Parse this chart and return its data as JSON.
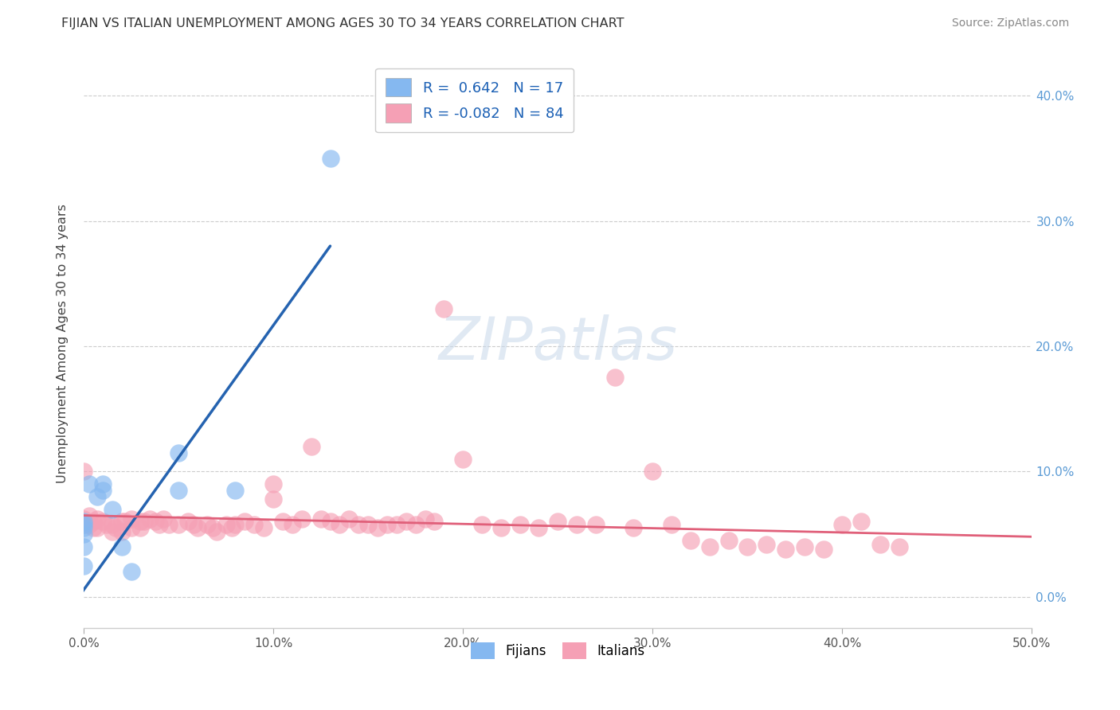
{
  "title": "FIJIAN VS ITALIAN UNEMPLOYMENT AMONG AGES 30 TO 34 YEARS CORRELATION CHART",
  "source": "Source: ZipAtlas.com",
  "ylabel": "Unemployment Among Ages 30 to 34 years",
  "xlim": [
    0.0,
    0.5
  ],
  "ylim": [
    -0.025,
    0.43
  ],
  "xticks": [
    0.0,
    0.1,
    0.2,
    0.3,
    0.4,
    0.5
  ],
  "xticklabels": [
    "0.0%",
    "10.0%",
    "20.0%",
    "30.0%",
    "40.0%",
    "50.0%"
  ],
  "yticks": [
    0.0,
    0.1,
    0.2,
    0.3,
    0.4
  ],
  "yticklabels": [
    "0.0%",
    "10.0%",
    "20.0%",
    "30.0%",
    "40.0%"
  ],
  "fijian_color": "#85b8f0",
  "italian_color": "#f5a0b5",
  "fijian_line_color": "#2563b0",
  "italian_line_color": "#e0607a",
  "legend_R_fijian": "0.642",
  "legend_N_fijian": "17",
  "legend_R_italian": "-0.082",
  "legend_N_italian": "84",
  "fijian_x": [
    0.0,
    0.0,
    0.0,
    0.0,
    0.0,
    0.0,
    0.003,
    0.007,
    0.01,
    0.01,
    0.015,
    0.02,
    0.025,
    0.05,
    0.05,
    0.08,
    0.13
  ],
  "fijian_y": [
    0.05,
    0.055,
    0.058,
    0.06,
    0.04,
    0.025,
    0.09,
    0.08,
    0.085,
    0.09,
    0.07,
    0.04,
    0.02,
    0.085,
    0.115,
    0.085,
    0.35
  ],
  "fijian_trendline_x": [
    -0.005,
    0.13
  ],
  "fijian_trendline_y": [
    -0.005,
    0.28
  ],
  "italian_x": [
    0.0,
    0.0,
    0.0,
    0.003,
    0.003,
    0.005,
    0.005,
    0.007,
    0.007,
    0.01,
    0.012,
    0.015,
    0.015,
    0.017,
    0.02,
    0.02,
    0.022,
    0.025,
    0.025,
    0.03,
    0.03,
    0.032,
    0.035,
    0.038,
    0.04,
    0.042,
    0.045,
    0.05,
    0.055,
    0.058,
    0.06,
    0.065,
    0.068,
    0.07,
    0.075,
    0.078,
    0.08,
    0.085,
    0.09,
    0.095,
    0.1,
    0.1,
    0.105,
    0.11,
    0.115,
    0.12,
    0.125,
    0.13,
    0.135,
    0.14,
    0.145,
    0.15,
    0.155,
    0.16,
    0.165,
    0.17,
    0.175,
    0.18,
    0.185,
    0.19,
    0.2,
    0.21,
    0.22,
    0.23,
    0.24,
    0.25,
    0.26,
    0.27,
    0.28,
    0.29,
    0.3,
    0.31,
    0.32,
    0.33,
    0.34,
    0.35,
    0.36,
    0.37,
    0.38,
    0.39,
    0.4,
    0.41,
    0.42,
    0.43
  ],
  "italian_y": [
    0.1,
    0.062,
    0.058,
    0.065,
    0.058,
    0.06,
    0.055,
    0.062,
    0.055,
    0.06,
    0.058,
    0.058,
    0.052,
    0.055,
    0.06,
    0.052,
    0.06,
    0.062,
    0.055,
    0.06,
    0.055,
    0.06,
    0.062,
    0.06,
    0.058,
    0.062,
    0.058,
    0.058,
    0.06,
    0.058,
    0.055,
    0.058,
    0.055,
    0.052,
    0.058,
    0.055,
    0.058,
    0.06,
    0.058,
    0.055,
    0.09,
    0.078,
    0.06,
    0.058,
    0.062,
    0.12,
    0.062,
    0.06,
    0.058,
    0.062,
    0.058,
    0.058,
    0.055,
    0.058,
    0.058,
    0.06,
    0.058,
    0.062,
    0.06,
    0.23,
    0.11,
    0.058,
    0.055,
    0.058,
    0.055,
    0.06,
    0.058,
    0.058,
    0.175,
    0.055,
    0.1,
    0.058,
    0.045,
    0.04,
    0.045,
    0.04,
    0.042,
    0.038,
    0.04,
    0.038,
    0.058,
    0.06,
    0.042,
    0.04
  ],
  "italian_trendline_x": [
    0.0,
    0.5
  ],
  "italian_trendline_y": [
    0.065,
    0.048
  ]
}
